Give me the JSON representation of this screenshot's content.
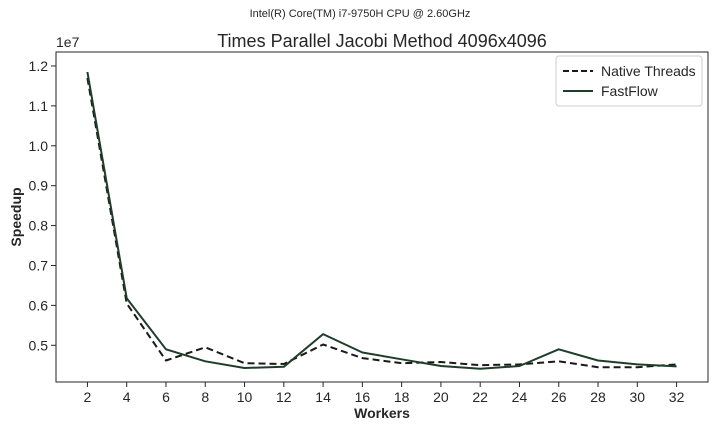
{
  "chart_data": {
    "type": "line",
    "suptitle": "Intel(R) Core(TM) i7-9750H CPU @ 2.60GHz",
    "title": "Times Parallel Jacobi Method 4096x4096",
    "xlabel": "Workers",
    "ylabel": "Speedup",
    "y_offset_label": "1e7",
    "x": [
      2,
      4,
      6,
      8,
      10,
      12,
      14,
      16,
      18,
      20,
      22,
      24,
      26,
      28,
      30,
      32
    ],
    "xlim": [
      0.4,
      33.6
    ],
    "ylim": [
      4.08,
      12.35
    ],
    "y_ticks": [
      5,
      6,
      7,
      8,
      9,
      10,
      11,
      12
    ],
    "y_tick_labels": [
      "0.5",
      "0.6",
      "0.7",
      "0.8",
      "0.9",
      "1.0",
      "1.1",
      "1.2"
    ],
    "y_unit_note": "values in units of 1e6; axis offset 1e7",
    "grid": false,
    "legend_position": "top-right",
    "series": [
      {
        "name": "Native Threads",
        "color": "#1a1a1a",
        "dash": "dashed",
        "values": [
          11.7,
          6.05,
          4.62,
          4.95,
          4.55,
          4.53,
          5.02,
          4.68,
          4.55,
          4.58,
          4.5,
          4.52,
          4.6,
          4.45,
          4.45,
          4.52
        ]
      },
      {
        "name": "FastFlow",
        "color": "#1f3d2b",
        "dash": "solid",
        "values": [
          11.85,
          6.18,
          4.9,
          4.6,
          4.43,
          4.46,
          5.28,
          4.82,
          4.65,
          4.48,
          4.41,
          4.48,
          4.9,
          4.62,
          4.52,
          4.47
        ]
      }
    ]
  }
}
